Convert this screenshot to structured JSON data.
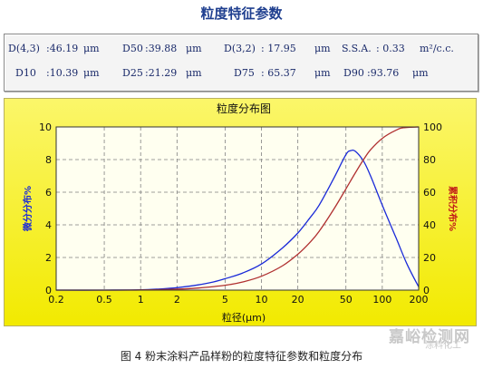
{
  "panel_title": "粒度特征参数",
  "params": {
    "d43_label": "D(4,3)",
    "d43_value": ":46.19",
    "d43_unit": "μm",
    "d50_label": "D50",
    "d50_value": ":39.88",
    "d50_unit": "μm",
    "d32_label": "D(3,2)",
    "d32_value": ": 17.95",
    "d32_unit": "μm",
    "ssa_label": "S.S.A.",
    "ssa_value": ": 0.33",
    "ssa_unit": "m²/c.c.",
    "d10_label": "D10",
    "d10_value": ":10.39",
    "d10_unit": "μm",
    "d25_label": "D25",
    "d25_value": ":21.29",
    "d25_unit": "μm",
    "d75_label": "D75",
    "d75_value": ": 65.37",
    "d75_unit": "μm",
    "d90_label": "D90",
    "d90_value": ":93.76",
    "d90_unit": "μm"
  },
  "caption": "图 4  粉末涂料产品样粉的粒度特征参数和粒度分布",
  "watermark": {
    "main": "嘉峪检测网",
    "sub": "涂料化工"
  },
  "colors": {
    "frame_bg": "#f7f100",
    "plot_bg": "#fffff0",
    "diff_line": "#1a2ad8",
    "cum_line": "#b03030",
    "left_axis_text": "#1a2ad8",
    "right_axis_text": "#c01818",
    "grid": "#808080"
  },
  "chart_data": {
    "type": "line",
    "title": "粒度分布图",
    "xlabel": "粒径(μm)",
    "ylabel_left": "微分分布%",
    "ylabel_right": "累积分布%",
    "x_scale": "log",
    "xlim": [
      0.2,
      200
    ],
    "ylim_left": [
      0,
      10
    ],
    "ylim_right": [
      0,
      100
    ],
    "x_ticks": [
      0.2,
      0.5,
      1,
      2,
      5,
      10,
      20,
      50,
      100,
      200
    ],
    "x_tick_labels": [
      "0.2",
      "0.5",
      "1",
      "2",
      "5",
      "10",
      "20",
      "50",
      "100",
      "200"
    ],
    "y_left_ticks": [
      0,
      2,
      4,
      6,
      8,
      10
    ],
    "y_left_tick_labels": [
      "0",
      "2",
      "4",
      "6",
      "8",
      "10"
    ],
    "y_right_ticks": [
      0,
      20,
      40,
      60,
      80,
      100
    ],
    "y_right_tick_labels": [
      "0",
      "20",
      "40",
      "60",
      "80",
      "100"
    ],
    "grid": true,
    "series": [
      {
        "name": "微分分布%",
        "axis": "left",
        "x": [
          0.2,
          0.5,
          1,
          1.5,
          2,
          3,
          4,
          5,
          7,
          10,
          15,
          20,
          25,
          30,
          40,
          50,
          55,
          60,
          70,
          80,
          100,
          130,
          160,
          200
        ],
        "y": [
          0,
          0,
          0.02,
          0.08,
          0.15,
          0.32,
          0.5,
          0.7,
          1.05,
          1.6,
          2.6,
          3.5,
          4.4,
          5.2,
          6.9,
          8.3,
          8.55,
          8.5,
          7.9,
          7.0,
          5.2,
          3.2,
          1.6,
          0.2
        ]
      },
      {
        "name": "累积分布%",
        "axis": "right",
        "x": [
          0.2,
          0.5,
          1,
          2,
          3,
          5,
          7,
          10,
          15,
          20,
          25,
          30,
          40,
          50,
          60,
          70,
          80,
          100,
          130,
          150,
          200
        ],
        "y": [
          0,
          0,
          0.1,
          0.6,
          1.3,
          3,
          5,
          8.5,
          15,
          22,
          29,
          36,
          50,
          62,
          72,
          80,
          86,
          93,
          98,
          99.5,
          100
        ]
      }
    ]
  }
}
